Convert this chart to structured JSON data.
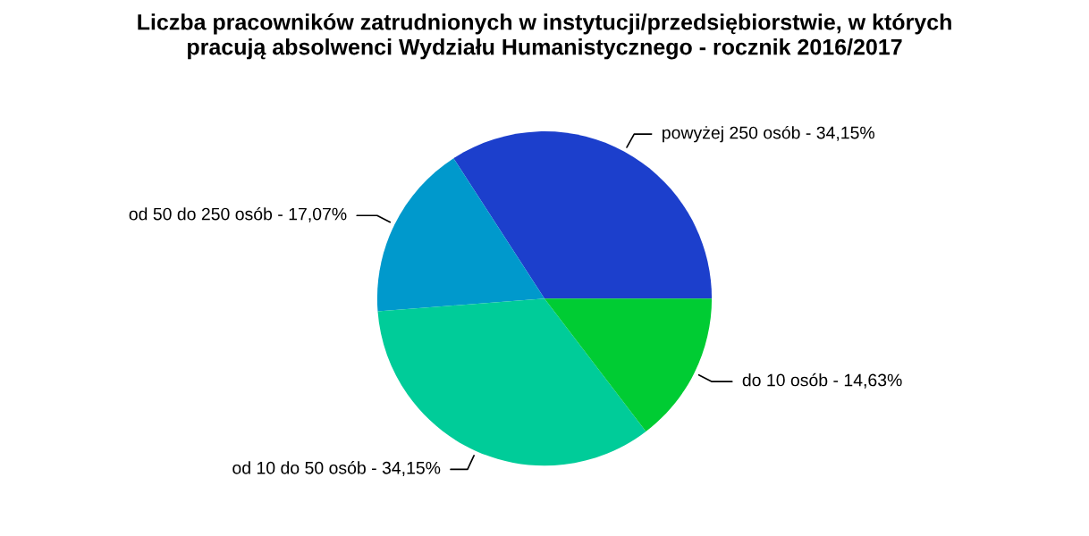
{
  "chart_data": {
    "type": "pie",
    "title": "Liczba pracowników zatrudnionych w instytucji/przedsiębiorstwie, w których\npracują absolwenci Wydziału Humanistycznego - rocznik 2016/2017",
    "categories": [
      "powyżej 250 osób - 34,15%",
      "od 50 do 250 osób - 17,07%",
      "od 10 do 50 osób - 34,15%",
      "do 10 osób - 14,63%"
    ],
    "values": [
      34.15,
      17.07,
      34.15,
      14.63
    ],
    "colors": [
      "#1c3fcc",
      "#0099cc",
      "#00cc99",
      "#00cc33"
    ],
    "legend": false
  }
}
